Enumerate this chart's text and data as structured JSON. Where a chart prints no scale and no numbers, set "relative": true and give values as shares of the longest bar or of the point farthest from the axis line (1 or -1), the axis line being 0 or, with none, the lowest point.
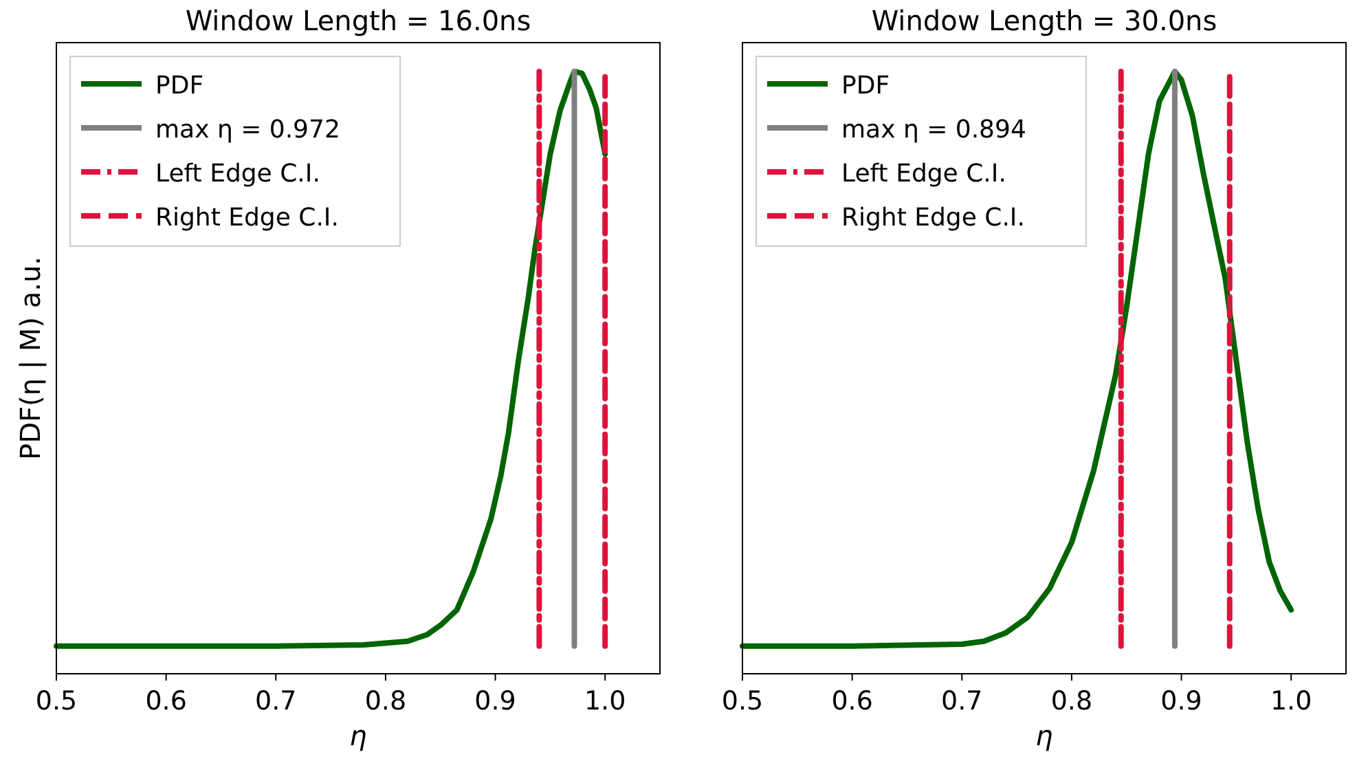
{
  "chart_data": [
    {
      "type": "line",
      "title": "Window Length = 16.0ns",
      "xlabel": "η",
      "ylabel": "PDF(η | M) a.u.",
      "relative": true,
      "xlim": [
        0.5,
        1.05
      ],
      "xticks": [
        {
          "value": 0.5,
          "label": "0.5"
        },
        {
          "value": 0.6,
          "label": "0.6"
        },
        {
          "value": 0.7,
          "label": "0.7"
        },
        {
          "value": 0.8,
          "label": "0.8"
        },
        {
          "value": 0.9,
          "label": "0.9"
        },
        {
          "value": 1.0,
          "label": "1.0"
        }
      ],
      "legend": "top left",
      "grid": false,
      "series": [
        {
          "name": "PDF",
          "color": "#006400",
          "line_style": "solid",
          "x": [
            0.5,
            0.6,
            0.7,
            0.78,
            0.82,
            0.838,
            0.851,
            0.865,
            0.88,
            0.896,
            0.905,
            0.912,
            0.921,
            0.93,
            0.936,
            0.943,
            0.95,
            0.959,
            0.968,
            0.972,
            0.979,
            0.986,
            0.992,
            1.0
          ],
          "values": [
            0.046,
            0.046,
            0.046,
            0.048,
            0.054,
            0.065,
            0.082,
            0.106,
            0.17,
            0.257,
            0.329,
            0.4,
            0.52,
            0.624,
            0.704,
            0.783,
            0.863,
            0.935,
            0.982,
            1.0,
            0.997,
            0.97,
            0.939,
            0.863
          ]
        },
        {
          "name": "max η = 0.972",
          "color": "#808080",
          "line_style": "solid",
          "x": [
            0.972,
            0.972
          ],
          "values": [
            0.046,
            1.0
          ]
        },
        {
          "name": "Left Edge C.I.",
          "color": "#dc143c",
          "line_style": "dashdot",
          "x": [
            0.94,
            0.94
          ],
          "values": [
            0.046,
            1.0
          ]
        },
        {
          "name": "Right Edge C.I.",
          "color": "#dc143c",
          "line_style": "dashed",
          "x": [
            1.0,
            1.0
          ],
          "values": [
            0.046,
            1.0
          ]
        }
      ]
    },
    {
      "type": "line",
      "title": "Window Length = 30.0ns",
      "xlabel": "η",
      "relative": true,
      "xlim": [
        0.5,
        1.05
      ],
      "xticks": [
        {
          "value": 0.5,
          "label": "0.5"
        },
        {
          "value": 0.6,
          "label": "0.6"
        },
        {
          "value": 0.7,
          "label": "0.7"
        },
        {
          "value": 0.8,
          "label": "0.8"
        },
        {
          "value": 0.9,
          "label": "0.9"
        },
        {
          "value": 1.0,
          "label": "1.0"
        }
      ],
      "legend": "top left",
      "grid": false,
      "series": [
        {
          "name": "PDF",
          "color": "#006400",
          "line_style": "solid",
          "x": [
            0.5,
            0.6,
            0.7,
            0.72,
            0.74,
            0.76,
            0.78,
            0.8,
            0.82,
            0.84,
            0.85,
            0.86,
            0.87,
            0.88,
            0.89,
            0.894,
            0.9,
            0.91,
            0.92,
            0.93,
            0.94,
            0.95,
            0.96,
            0.97,
            0.98,
            0.99,
            1.0
          ],
          "values": [
            0.046,
            0.046,
            0.049,
            0.054,
            0.068,
            0.094,
            0.142,
            0.218,
            0.337,
            0.496,
            0.608,
            0.735,
            0.863,
            0.951,
            0.986,
            1.0,
            0.986,
            0.927,
            0.831,
            0.743,
            0.656,
            0.52,
            0.385,
            0.273,
            0.186,
            0.138,
            0.106
          ]
        },
        {
          "name": "max η = 0.894",
          "color": "#808080",
          "line_style": "solid",
          "x": [
            0.894,
            0.894
          ],
          "values": [
            0.046,
            1.0
          ]
        },
        {
          "name": "Left Edge C.I.",
          "color": "#dc143c",
          "line_style": "dashdot",
          "x": [
            0.845,
            0.845
          ],
          "values": [
            0.046,
            1.0
          ]
        },
        {
          "name": "Right Edge C.I.",
          "color": "#dc143c",
          "line_style": "dashed",
          "x": [
            0.944,
            0.944
          ],
          "values": [
            0.046,
            1.0
          ]
        }
      ]
    }
  ]
}
